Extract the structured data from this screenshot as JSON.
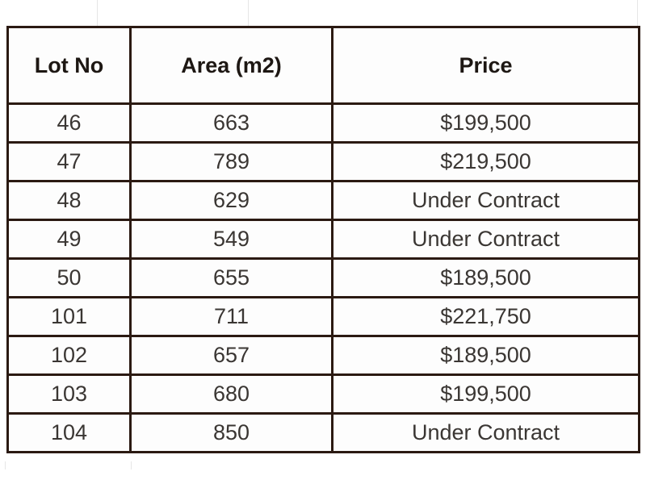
{
  "table": {
    "headers": [
      "Lot No",
      "Area (m2)",
      "Price"
    ],
    "rows": [
      [
        "46",
        "663",
        "$199,500"
      ],
      [
        "47",
        "789",
        "$219,500"
      ],
      [
        "48",
        "629",
        "Under Contract"
      ],
      [
        "49",
        "549",
        "Under Contract"
      ],
      [
        "50",
        "655",
        "$189,500"
      ],
      [
        "101",
        "711",
        "$221,750"
      ],
      [
        "102",
        "657",
        "$189,500"
      ],
      [
        "103",
        "680",
        "$199,500"
      ],
      [
        "104",
        "850",
        "Under Contract"
      ]
    ]
  },
  "chart_data": {
    "type": "table",
    "title": "",
    "columns": [
      "Lot No",
      "Area (m2)",
      "Price"
    ],
    "rows": [
      {
        "lot_no": 46,
        "area_m2": 663,
        "price": "$199,500"
      },
      {
        "lot_no": 47,
        "area_m2": 789,
        "price": "$219,500"
      },
      {
        "lot_no": 48,
        "area_m2": 629,
        "price": "Under Contract"
      },
      {
        "lot_no": 49,
        "area_m2": 549,
        "price": "Under Contract"
      },
      {
        "lot_no": 50,
        "area_m2": 655,
        "price": "$189,500"
      },
      {
        "lot_no": 101,
        "area_m2": 711,
        "price": "$221,750"
      },
      {
        "lot_no": 102,
        "area_m2": 657,
        "price": "$189,500"
      },
      {
        "lot_no": 103,
        "area_m2": 680,
        "price": "$199,500"
      },
      {
        "lot_no": 104,
        "area_m2": 850,
        "price": "Under Contract"
      }
    ]
  },
  "colors": {
    "border": "#2b1a12",
    "header_text": "#1d1713",
    "cell_text": "#3a3633",
    "cell_background": "#fdfdfd",
    "page_background": "#ffffff"
  }
}
